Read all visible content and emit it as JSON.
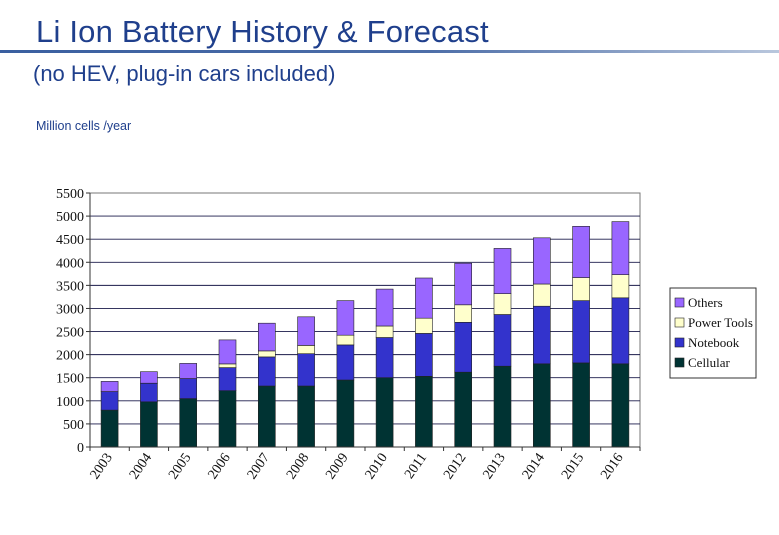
{
  "page": {
    "title": "Li Ion Battery History & Forecast",
    "subtitle": "(no HEV, plug-in cars included)",
    "units_label": "Million cells /year"
  },
  "chart_data": {
    "type": "bar",
    "stacked": true,
    "title": "",
    "xlabel": "",
    "ylabel": "Million cells /year",
    "ylim": [
      0,
      5500
    ],
    "ytick_step": 500,
    "yticks": [
      "0",
      "500",
      "1000",
      "1500",
      "2000",
      "2500",
      "3000",
      "3500",
      "4000",
      "4500",
      "5000",
      "5500"
    ],
    "grid": true,
    "legend_position": "right",
    "categories": [
      "2003",
      "2004",
      "2005",
      "2006",
      "2007",
      "2008",
      "2009",
      "2010",
      "2011",
      "2012",
      "2013",
      "2014",
      "2015",
      "2016"
    ],
    "series": [
      {
        "name": "Cellular",
        "color": "#003333",
        "values": [
          800,
          980,
          1050,
          1220,
          1320,
          1320,
          1450,
          1500,
          1530,
          1620,
          1750,
          1800,
          1820,
          1800
        ]
      },
      {
        "name": "Notebook",
        "color": "#3333cc",
        "values": [
          400,
          400,
          430,
          500,
          630,
          700,
          760,
          870,
          930,
          1080,
          1120,
          1250,
          1350,
          1430
        ]
      },
      {
        "name": "Power Tools",
        "color": "#ffffcc",
        "values": [
          0,
          0,
          0,
          80,
          130,
          180,
          210,
          250,
          330,
          380,
          450,
          480,
          500,
          500
        ]
      },
      {
        "name": "Others",
        "color": "#9966ff",
        "values": [
          220,
          250,
          330,
          520,
          600,
          620,
          750,
          800,
          870,
          900,
          980,
          1000,
          1110,
          1150
        ]
      }
    ],
    "legend_order": [
      "Others",
      "Power Tools",
      "Notebook",
      "Cellular"
    ]
  }
}
